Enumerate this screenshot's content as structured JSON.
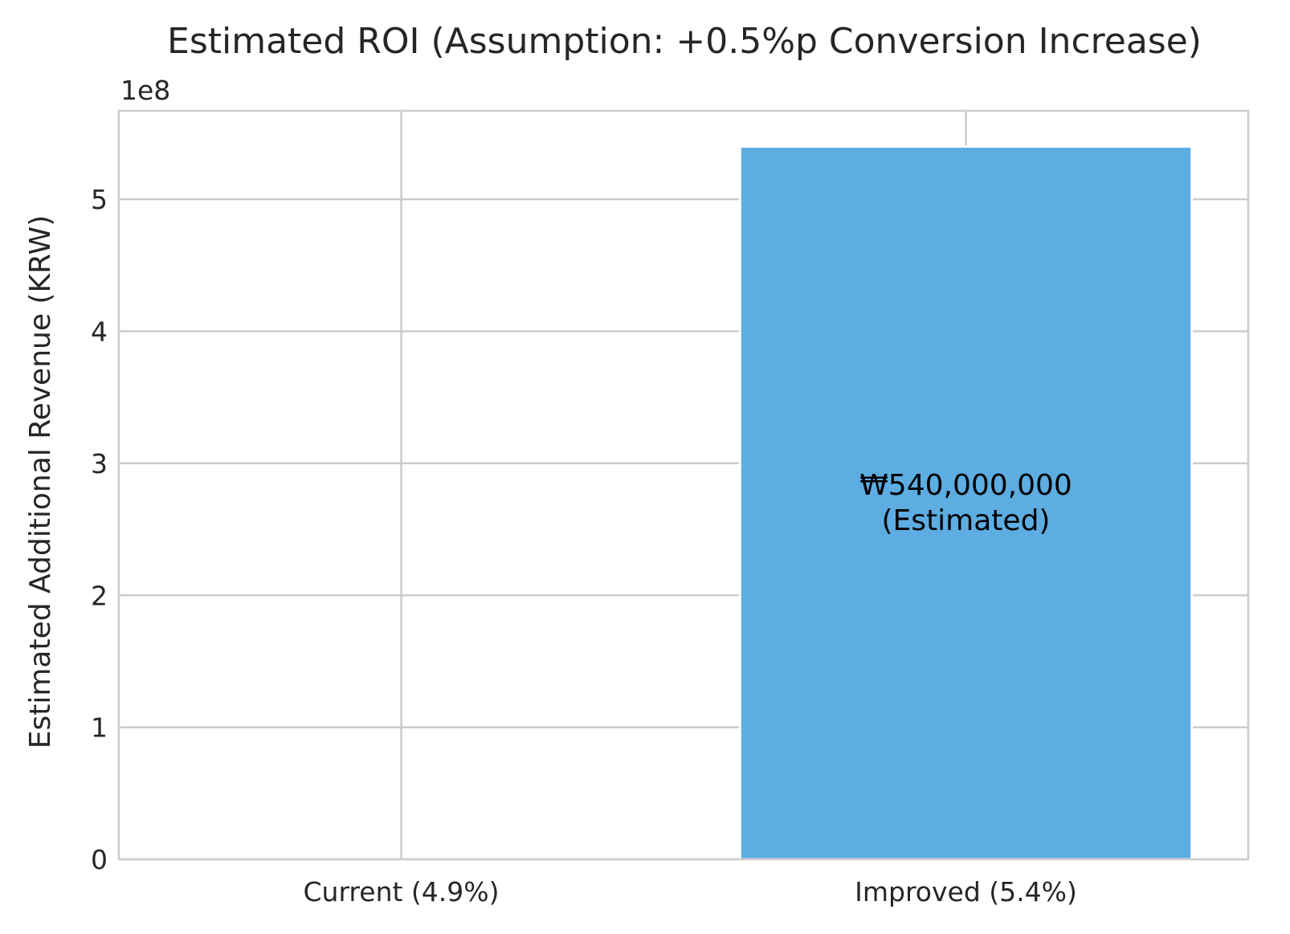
{
  "chart_data": {
    "type": "bar",
    "title": "Estimated ROI (Assumption: +0.5%p Conversion Increase)",
    "xlabel": "",
    "ylabel": "Estimated Additional Revenue (KRW)",
    "y_offset_label": "1e8",
    "ylim": [
      0,
      567000000
    ],
    "y_ticks": [
      0,
      100000000,
      200000000,
      300000000,
      400000000,
      500000000
    ],
    "y_tick_labels": [
      "0",
      "1",
      "2",
      "3",
      "4",
      "5"
    ],
    "categories": [
      "Current (4.9%)",
      "Improved (5.4%)"
    ],
    "values": [
      0,
      540000000
    ],
    "bar_labels": [
      [
        "",
        ""
      ],
      [
        "₩540,000,000",
        "(Estimated)"
      ]
    ],
    "bar_color": "#5dade2",
    "grid": true
  }
}
